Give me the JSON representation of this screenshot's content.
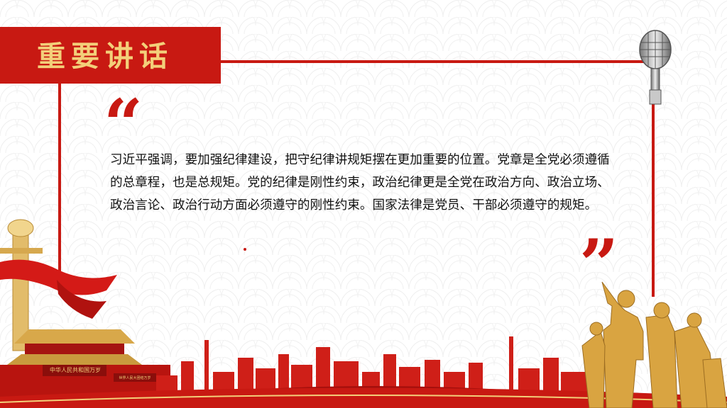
{
  "slide": {
    "title": "重要讲话",
    "quote_open": "“",
    "quote_close": "”",
    "body": "习近平强调，要加强纪律建设，把守纪律讲规矩摆在更加重要的位置。党章是全党必须遵循的总章程，也是总规矩。党的纪律是刚性约束，政治纪律更是全党在政治方向、政治立场、政治言论、政治行动方面必须遵守的刚性约束。国家法律是党员、干部必须遵守的规矩。"
  },
  "decor": {
    "gate_sign_left": "中华人民共和国万岁",
    "gate_sign_right": "世界人民大团结万岁",
    "icons": [
      "microphone-icon",
      "huabiao-column-icon",
      "tiananmen-gate-icon",
      "city-skyline-icon",
      "statue-group-icon",
      "red-ribbon-icon"
    ]
  },
  "colors": {
    "accent_red": "#c81912",
    "title_gold": "#f3cf7a",
    "statue_gold": "#d9a441",
    "body_text": "#111111"
  }
}
